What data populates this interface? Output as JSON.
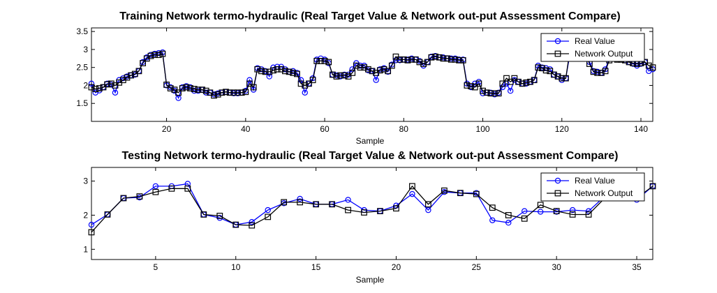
{
  "chart_data": [
    {
      "type": "line",
      "title": "Training Network termo-hydraulic (Real Target Value & Network out-put Assessment Compare)",
      "xlabel": "Sample",
      "ylabel": "",
      "xlim": [
        1,
        143
      ],
      "ylim": [
        1.0,
        3.6
      ],
      "xticks": [
        20,
        40,
        60,
        80,
        100,
        120,
        140
      ],
      "xtick_labels": [
        "20",
        "40",
        "60",
        "80",
        "100",
        "120",
        "140"
      ],
      "yticks": [
        1.5,
        2,
        2.5,
        3,
        3.5
      ],
      "ytick_labels": [
        "1.5",
        "2",
        "2.5",
        "3",
        "3.5"
      ],
      "legend_position": "top-right",
      "legend": [
        "Real Value",
        "Network Output"
      ],
      "x": [
        1,
        2,
        3,
        4,
        5,
        6,
        7,
        8,
        9,
        10,
        11,
        12,
        13,
        14,
        15,
        16,
        17,
        18,
        19,
        20,
        21,
        22,
        23,
        24,
        25,
        26,
        27,
        28,
        29,
        30,
        31,
        32,
        33,
        34,
        35,
        36,
        37,
        38,
        39,
        40,
        41,
        42,
        43,
        44,
        45,
        46,
        47,
        48,
        49,
        50,
        51,
        52,
        53,
        54,
        55,
        56,
        57,
        58,
        59,
        60,
        61,
        62,
        63,
        64,
        65,
        66,
        67,
        68,
        69,
        70,
        71,
        72,
        73,
        74,
        75,
        76,
        77,
        78,
        79,
        80,
        81,
        82,
        83,
        84,
        85,
        86,
        87,
        88,
        89,
        90,
        91,
        92,
        93,
        94,
        95,
        96,
        97,
        98,
        99,
        100,
        101,
        102,
        103,
        104,
        105,
        106,
        107,
        108,
        109,
        110,
        111,
        112,
        113,
        114,
        115,
        116,
        117,
        118,
        119,
        120,
        121,
        122,
        123,
        124,
        125,
        126,
        127,
        128,
        129,
        130,
        131,
        132,
        133,
        134,
        135,
        136,
        137,
        138,
        139,
        140,
        141,
        142,
        143
      ],
      "series": [
        {
          "name": "Real Value",
          "color": "#0000ff",
          "marker": "circle",
          "values": [
            2.05,
            1.8,
            1.86,
            1.95,
            2.05,
            2.02,
            1.8,
            2.15,
            2.2,
            2.25,
            2.28,
            2.3,
            2.4,
            2.65,
            2.78,
            2.85,
            2.88,
            2.9,
            2.92,
            2.0,
            1.95,
            1.85,
            1.65,
            1.95,
            1.98,
            1.95,
            1.85,
            1.85,
            1.88,
            1.8,
            1.8,
            1.75,
            1.78,
            1.8,
            1.82,
            1.8,
            1.78,
            1.78,
            1.8,
            1.85,
            2.15,
            1.88,
            2.48,
            2.45,
            2.4,
            2.25,
            2.5,
            2.52,
            2.52,
            2.45,
            2.38,
            2.4,
            2.35,
            2.15,
            1.8,
            2.05,
            2.2,
            2.72,
            2.75,
            2.72,
            2.62,
            2.3,
            2.28,
            2.25,
            2.3,
            2.3,
            2.45,
            2.62,
            2.55,
            2.55,
            2.42,
            2.4,
            2.15,
            2.45,
            2.48,
            2.38,
            2.58,
            2.7,
            2.7,
            2.72,
            2.72,
            2.75,
            2.72,
            2.68,
            2.55,
            2.65,
            2.8,
            2.82,
            2.78,
            2.78,
            2.75,
            2.75,
            2.75,
            2.72,
            2.72,
            2.05,
            1.95,
            2.05,
            2.1,
            1.78,
            1.8,
            1.8,
            1.75,
            1.8,
            1.95,
            2.05,
            1.85,
            2.15,
            2.1,
            2.05,
            2.05,
            2.1,
            2.15,
            2.55,
            2.5,
            2.48,
            2.45,
            2.3,
            2.25,
            2.15,
            2.2,
            2.85,
            2.9,
            2.9,
            2.85,
            2.8,
            2.65,
            2.4,
            2.38,
            2.35,
            2.45,
            2.75,
            2.8,
            2.75,
            2.75,
            2.7,
            2.65,
            2.6,
            2.55,
            2.6,
            2.65,
            2.4,
            2.45
          ]
        },
        {
          "name": "Network Output",
          "color": "#000000",
          "marker": "square",
          "values": [
            1.95,
            1.9,
            1.92,
            1.95,
            2.03,
            2.05,
            2.0,
            2.08,
            2.15,
            2.22,
            2.28,
            2.32,
            2.4,
            2.62,
            2.75,
            2.82,
            2.85,
            2.85,
            2.88,
            2.02,
            1.92,
            1.88,
            1.8,
            1.92,
            1.95,
            1.92,
            1.9,
            1.88,
            1.88,
            1.85,
            1.8,
            1.72,
            1.75,
            1.8,
            1.82,
            1.8,
            1.8,
            1.8,
            1.8,
            1.82,
            2.05,
            1.95,
            2.45,
            2.4,
            2.38,
            2.38,
            2.42,
            2.45,
            2.45,
            2.4,
            2.38,
            2.35,
            2.32,
            2.05,
            2.0,
            2.05,
            2.15,
            2.68,
            2.68,
            2.68,
            2.65,
            2.3,
            2.25,
            2.28,
            2.28,
            2.25,
            2.35,
            2.55,
            2.5,
            2.5,
            2.45,
            2.4,
            2.35,
            2.42,
            2.45,
            2.4,
            2.55,
            2.8,
            2.72,
            2.72,
            2.7,
            2.72,
            2.72,
            2.65,
            2.6,
            2.65,
            2.78,
            2.8,
            2.78,
            2.75,
            2.75,
            2.72,
            2.72,
            2.7,
            2.7,
            2.0,
            1.98,
            1.95,
            2.05,
            1.85,
            1.8,
            1.78,
            1.78,
            1.78,
            2.05,
            2.2,
            2.1,
            2.2,
            2.1,
            2.05,
            2.08,
            2.1,
            2.15,
            2.5,
            2.48,
            2.42,
            2.4,
            2.3,
            2.25,
            2.2,
            2.2,
            2.95,
            2.95,
            2.95,
            2.9,
            2.88,
            2.6,
            2.38,
            2.35,
            2.35,
            2.4,
            2.7,
            2.78,
            2.72,
            2.72,
            2.7,
            2.65,
            2.62,
            2.6,
            2.62,
            2.65,
            2.55,
            2.5
          ]
        }
      ]
    },
    {
      "type": "line",
      "title": "Testing Network termo-hydraulic (Real Target Value & Network out-put Assessment Compare)",
      "xlabel": "Sample",
      "ylabel": "",
      "xlim": [
        1,
        36
      ],
      "ylim": [
        0.7,
        3.4
      ],
      "xticks": [
        5,
        10,
        15,
        20,
        25,
        30,
        35
      ],
      "xtick_labels": [
        "5",
        "10",
        "15",
        "20",
        "25",
        "30",
        "35"
      ],
      "yticks": [
        1,
        2,
        3
      ],
      "ytick_labels": [
        "1",
        "2",
        "3"
      ],
      "legend_position": "top-right",
      "legend": [
        "Real Value",
        "Network Output"
      ],
      "x": [
        1,
        2,
        3,
        4,
        5,
        6,
        7,
        8,
        9,
        10,
        11,
        12,
        13,
        14,
        15,
        16,
        17,
        18,
        19,
        20,
        21,
        22,
        23,
        24,
        25,
        26,
        27,
        28,
        29,
        30,
        31,
        32,
        33,
        34,
        35,
        36
      ],
      "series": [
        {
          "name": "Real Value",
          "color": "#0000ff",
          "marker": "circle",
          "values": [
            1.72,
            2.02,
            2.5,
            2.52,
            2.85,
            2.85,
            2.92,
            2.02,
            1.92,
            1.72,
            1.8,
            2.15,
            2.35,
            2.48,
            2.32,
            2.32,
            2.45,
            2.15,
            2.12,
            2.28,
            2.62,
            2.15,
            2.68,
            2.65,
            2.65,
            1.85,
            1.78,
            2.12,
            2.1,
            2.1,
            2.15,
            2.12,
            2.55,
            2.5,
            2.45,
            2.85
          ]
        },
        {
          "name": "Network Output",
          "color": "#000000",
          "marker": "square",
          "values": [
            1.5,
            2.02,
            2.5,
            2.55,
            2.68,
            2.78,
            2.78,
            2.02,
            1.98,
            1.72,
            1.7,
            1.95,
            2.38,
            2.38,
            2.32,
            2.32,
            2.15,
            2.08,
            2.12,
            2.2,
            2.85,
            2.32,
            2.72,
            2.65,
            2.62,
            2.22,
            2.0,
            1.9,
            2.3,
            2.12,
            2.02,
            2.02,
            2.5,
            2.5,
            2.5,
            2.85
          ]
        }
      ]
    }
  ]
}
